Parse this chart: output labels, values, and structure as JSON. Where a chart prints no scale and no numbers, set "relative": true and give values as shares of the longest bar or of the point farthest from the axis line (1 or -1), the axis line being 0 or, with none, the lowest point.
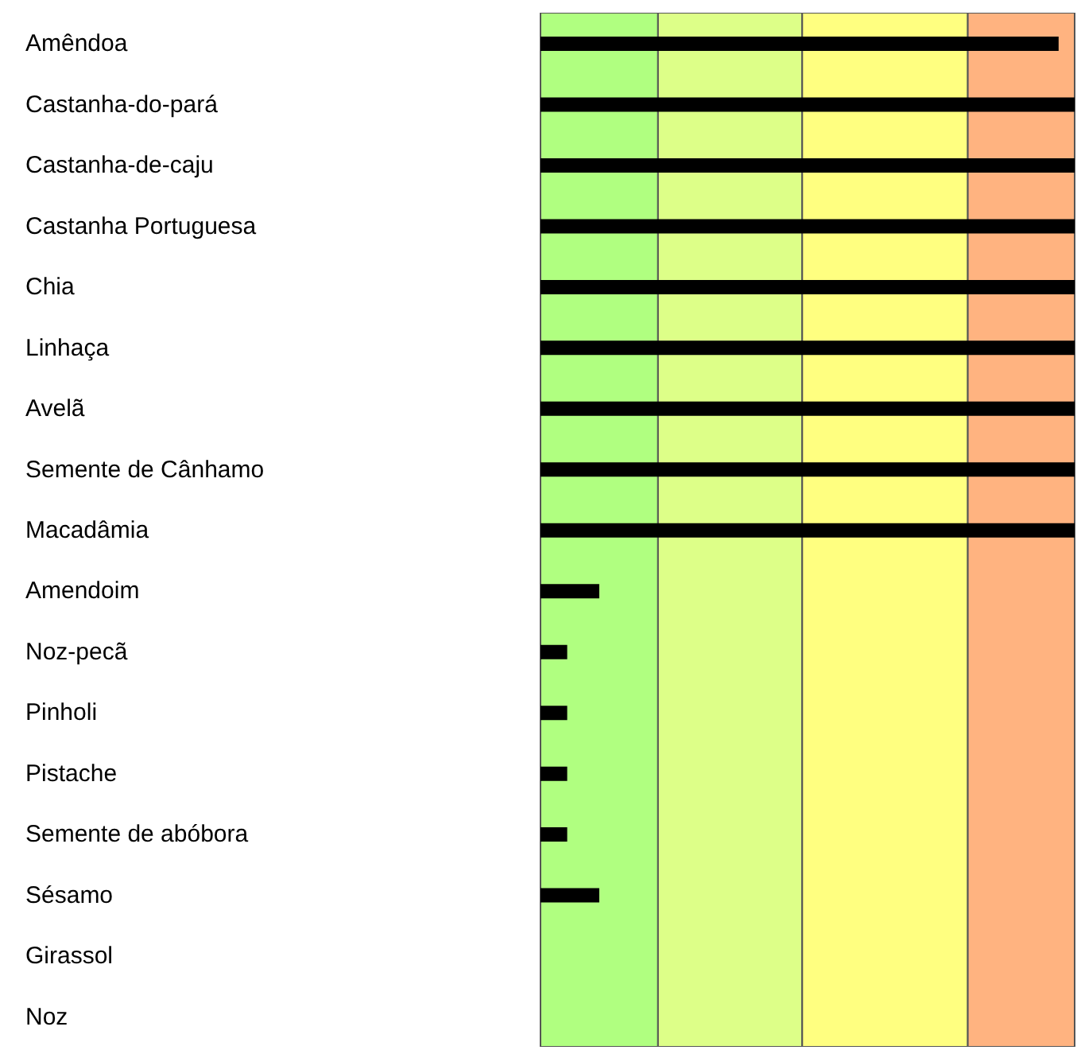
{
  "chart_data": {
    "type": "bar",
    "orientation": "horizontal",
    "relative": true,
    "categories": [
      "Amêndoa",
      "Castanha-do-pará",
      "Castanha-de-caju",
      "Castanha Portuguesa",
      "Chia",
      "Linhaça",
      "Avelã",
      "Semente de Cânhamo",
      "Macadâmia",
      "Amendoim",
      "Noz-pecã",
      "Pinholi",
      "Pistache",
      "Semente de abóbora",
      "Sésamo",
      "Girassol",
      "Noz"
    ],
    "values": [
      0.97,
      1,
      1,
      1,
      1,
      1,
      1,
      1,
      1,
      0.11,
      0.05,
      0.05,
      0.05,
      0.05,
      0.11,
      0,
      0
    ],
    "color": "#000000",
    "bands": [
      {
        "axis": "x",
        "from": 0,
        "to": 0.22,
        "color": "#b0ff80"
      },
      {
        "axis": "x",
        "from": 0.22,
        "to": 0.49,
        "color": "#ddff88"
      },
      {
        "axis": "x",
        "from": 0.49,
        "to": 0.8,
        "color": "#ffff80"
      },
      {
        "axis": "x",
        "from": 0.8,
        "to": 1,
        "color": "#ffb380"
      }
    ],
    "legend": false
  }
}
